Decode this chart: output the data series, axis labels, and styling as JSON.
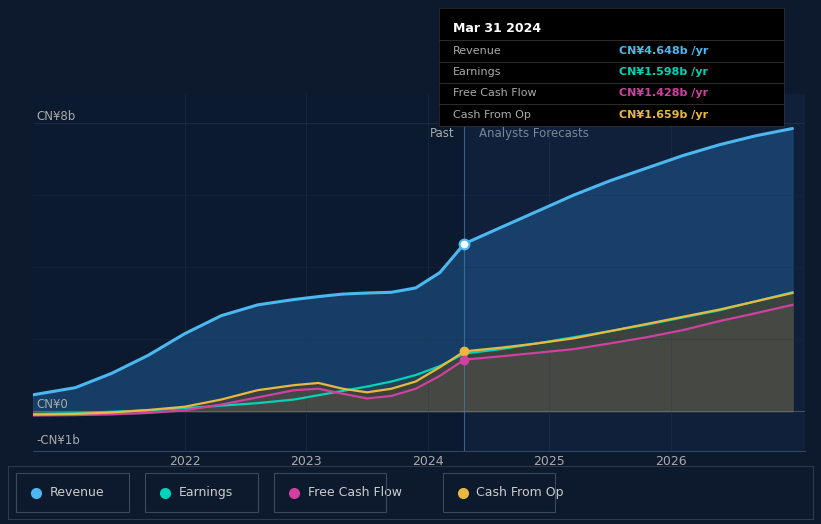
{
  "bg_color": "#0d1a2e",
  "past_bg": "#0a1628",
  "forecast_bg": "#111e30",
  "divider_x": 2024.3,
  "ylim": [
    -1.1,
    8.8
  ],
  "xlim": [
    2020.75,
    2027.1
  ],
  "xticks": [
    2022,
    2023,
    2024,
    2025,
    2026
  ],
  "revenue_color": "#4db8f0",
  "earnings_color": "#00d4b8",
  "fcf_color": "#d040a0",
  "cashop_color": "#e8b840",
  "revenue_past_x": [
    2020.75,
    2021.1,
    2021.4,
    2021.7,
    2022.0,
    2022.3,
    2022.6,
    2022.9,
    2023.1,
    2023.3,
    2023.5,
    2023.7,
    2023.9,
    2024.1,
    2024.3
  ],
  "revenue_past_y": [
    0.45,
    0.65,
    1.05,
    1.55,
    2.15,
    2.65,
    2.95,
    3.1,
    3.18,
    3.25,
    3.28,
    3.3,
    3.42,
    3.85,
    4.648
  ],
  "revenue_future_x": [
    2024.3,
    2024.6,
    2024.9,
    2025.2,
    2025.5,
    2025.8,
    2026.1,
    2026.4,
    2026.7,
    2027.0
  ],
  "revenue_future_y": [
    4.648,
    5.1,
    5.55,
    6.0,
    6.4,
    6.75,
    7.1,
    7.4,
    7.65,
    7.85
  ],
  "earnings_past_x": [
    2020.75,
    2021.1,
    2021.4,
    2021.7,
    2022.0,
    2022.3,
    2022.6,
    2022.9,
    2023.1,
    2023.3,
    2023.5,
    2023.7,
    2023.9,
    2024.1,
    2024.3
  ],
  "earnings_past_y": [
    -0.08,
    -0.06,
    -0.02,
    0.02,
    0.08,
    0.15,
    0.22,
    0.32,
    0.44,
    0.56,
    0.68,
    0.82,
    1.0,
    1.25,
    1.598
  ],
  "earnings_future_x": [
    2024.3,
    2024.6,
    2024.9,
    2025.2,
    2025.5,
    2025.8,
    2026.1,
    2026.4,
    2026.7,
    2027.0
  ],
  "earnings_future_y": [
    1.598,
    1.72,
    1.88,
    2.05,
    2.22,
    2.4,
    2.6,
    2.8,
    3.05,
    3.3
  ],
  "fcf_past_x": [
    2020.75,
    2021.1,
    2021.4,
    2021.7,
    2022.0,
    2022.3,
    2022.6,
    2022.9,
    2023.1,
    2023.3,
    2023.5,
    2023.7,
    2023.9,
    2024.1,
    2024.3
  ],
  "fcf_past_y": [
    -0.12,
    -0.11,
    -0.09,
    -0.05,
    0.02,
    0.18,
    0.38,
    0.58,
    0.62,
    0.48,
    0.35,
    0.42,
    0.62,
    0.98,
    1.428
  ],
  "fcf_future_x": [
    2024.3,
    2024.6,
    2024.9,
    2025.2,
    2025.5,
    2025.8,
    2026.1,
    2026.4,
    2026.7,
    2027.0
  ],
  "fcf_future_y": [
    1.428,
    1.52,
    1.62,
    1.72,
    1.88,
    2.05,
    2.25,
    2.5,
    2.72,
    2.95
  ],
  "cashop_past_x": [
    2020.75,
    2021.1,
    2021.4,
    2021.7,
    2022.0,
    2022.3,
    2022.6,
    2022.9,
    2023.1,
    2023.3,
    2023.5,
    2023.7,
    2023.9,
    2024.1,
    2024.3
  ],
  "cashop_past_y": [
    -0.1,
    -0.08,
    -0.04,
    0.03,
    0.12,
    0.32,
    0.58,
    0.72,
    0.78,
    0.62,
    0.52,
    0.62,
    0.82,
    1.22,
    1.659
  ],
  "cashop_future_x": [
    2024.3,
    2024.6,
    2024.9,
    2025.2,
    2025.5,
    2025.8,
    2026.1,
    2026.4,
    2026.7,
    2027.0
  ],
  "cashop_future_y": [
    1.659,
    1.76,
    1.88,
    2.02,
    2.22,
    2.42,
    2.62,
    2.82,
    3.05,
    3.28
  ],
  "tooltip_title": "Mar 31 2024",
  "tooltip_rows": [
    {
      "label": "Revenue",
      "value": "CN¥4.648b /yr",
      "color": "#4db8f0"
    },
    {
      "label": "Earnings",
      "value": "CN¥1.598b /yr",
      "color": "#00d4b8"
    },
    {
      "label": "Free Cash Flow",
      "value": "CN¥1.428b /yr",
      "color": "#d040a0"
    },
    {
      "label": "Cash From Op",
      "value": "CN¥1.659b /yr",
      "color": "#e8b840"
    }
  ],
  "legend_items": [
    {
      "label": "Revenue",
      "color": "#4db8f0"
    },
    {
      "label": "Earnings",
      "color": "#00d4b8"
    },
    {
      "label": "Free Cash Flow",
      "color": "#d040a0"
    },
    {
      "label": "Cash From Op",
      "color": "#e8b840"
    }
  ]
}
